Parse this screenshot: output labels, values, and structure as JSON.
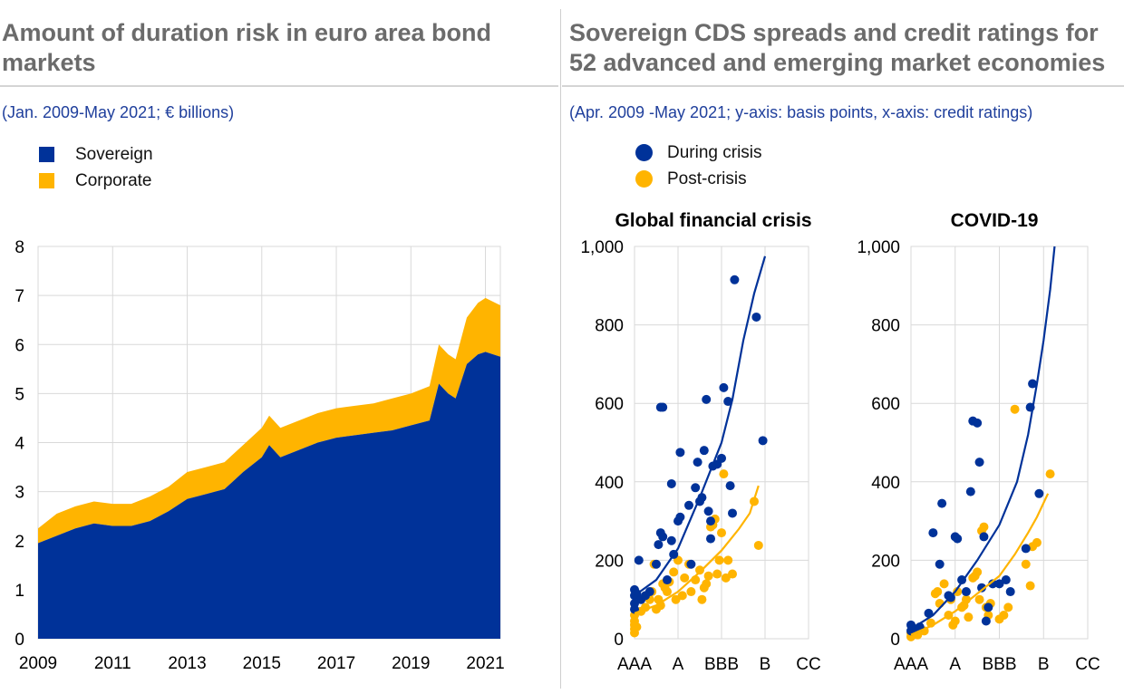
{
  "left_panel": {
    "title": "Amount of duration risk in euro area bond markets",
    "subtitle": "(Jan. 2009-May 2021; € billions)"
  },
  "right_panel": {
    "title": "Sovereign CDS spreads and credit ratings for 52 advanced and emerging market economies",
    "subtitle": "(Apr. 2009 -May 2021; y-axis: basis points, x-axis: credit ratings)"
  },
  "colors": {
    "sovereign": "#003299",
    "corporate": "#ffb400",
    "during": "#003299",
    "post": "#ffb400",
    "title_gray": "#6b6b6b",
    "subtitle_blue": "#1f3f9c"
  },
  "chart_data": [
    {
      "type": "area",
      "stacked": true,
      "x_ticks": [
        "2009",
        "2011",
        "2013",
        "2015",
        "2017",
        "2019",
        "2021"
      ],
      "ylim": [
        0,
        8
      ],
      "y_ticks": [
        "0",
        "1",
        "2",
        "3",
        "4",
        "5",
        "6",
        "7",
        "8"
      ],
      "grid": true,
      "legend": "top-left",
      "x": [
        2009.0,
        2009.5,
        2010.0,
        2010.5,
        2011.0,
        2011.5,
        2012.0,
        2012.5,
        2013.0,
        2013.5,
        2014.0,
        2014.5,
        2015.0,
        2015.2,
        2015.5,
        2016.0,
        2016.5,
        2017.0,
        2017.5,
        2018.0,
        2018.5,
        2019.0,
        2019.5,
        2019.75,
        2020.0,
        2020.2,
        2020.5,
        2020.8,
        2021.0,
        2021.4
      ],
      "series": [
        {
          "name": "Sovereign",
          "values": [
            1.95,
            2.1,
            2.25,
            2.35,
            2.3,
            2.3,
            2.4,
            2.6,
            2.85,
            2.95,
            3.05,
            3.4,
            3.7,
            3.95,
            3.7,
            3.85,
            4.0,
            4.1,
            4.15,
            4.2,
            4.25,
            4.35,
            4.45,
            5.2,
            5.0,
            4.9,
            5.6,
            5.8,
            5.85,
            5.75
          ]
        },
        {
          "name": "Corporate",
          "values": [
            0.3,
            0.45,
            0.45,
            0.45,
            0.45,
            0.45,
            0.5,
            0.5,
            0.55,
            0.55,
            0.55,
            0.55,
            0.6,
            0.6,
            0.6,
            0.6,
            0.6,
            0.6,
            0.6,
            0.6,
            0.65,
            0.65,
            0.7,
            0.8,
            0.8,
            0.8,
            0.95,
            1.05,
            1.1,
            1.05
          ]
        }
      ]
    },
    {
      "type": "scatter",
      "title": "Global financial crisis",
      "x_ticks": [
        "AAA",
        "A",
        "BBB",
        "B",
        "CC"
      ],
      "ylim": [
        0,
        1000
      ],
      "y_ticks": [
        "0",
        "200",
        "400",
        "600",
        "800",
        "1,000"
      ],
      "grid": true,
      "series": [
        {
          "name": "During crisis",
          "points": [
            [
              0,
              75
            ],
            [
              0,
              90
            ],
            [
              0,
              110
            ],
            [
              0,
              125
            ],
            [
              0.1,
              115
            ],
            [
              0.2,
              200
            ],
            [
              0.3,
              100
            ],
            [
              0.5,
              110
            ],
            [
              0.7,
              120
            ],
            [
              1.0,
              190
            ],
            [
              1.1,
              240
            ],
            [
              1.2,
              270
            ],
            [
              1.3,
              260
            ],
            [
              1.2,
              590
            ],
            [
              1.3,
              590
            ],
            [
              1.5,
              150
            ],
            [
              1.7,
              250
            ],
            [
              1.8,
              215
            ],
            [
              2.0,
              300
            ],
            [
              2.1,
              310
            ],
            [
              1.7,
              395
            ],
            [
              2.1,
              475
            ],
            [
              2.5,
              340
            ],
            [
              2.6,
              190
            ],
            [
              2.8,
              385
            ],
            [
              2.9,
              450
            ],
            [
              3.0,
              350
            ],
            [
              3.1,
              360
            ],
            [
              3.2,
              480
            ],
            [
              3.3,
              610
            ],
            [
              3.4,
              325
            ],
            [
              3.5,
              255
            ],
            [
              3.5,
              300
            ],
            [
              3.6,
              440
            ],
            [
              3.8,
              445
            ],
            [
              4.0,
              460
            ],
            [
              4.1,
              640
            ],
            [
              4.3,
              605
            ],
            [
              4.4,
              390
            ],
            [
              4.5,
              320
            ],
            [
              4.6,
              915
            ],
            [
              5.6,
              820
            ],
            [
              5.9,
              505
            ]
          ]
        },
        {
          "name": "Post-crisis",
          "points": [
            [
              0,
              15
            ],
            [
              0,
              25
            ],
            [
              0,
              35
            ],
            [
              0,
              45
            ],
            [
              0,
              60
            ],
            [
              0.1,
              30
            ],
            [
              0.3,
              70
            ],
            [
              0.5,
              80
            ],
            [
              0.7,
              100
            ],
            [
              0.8,
              120
            ],
            [
              0.9,
              190
            ],
            [
              1.0,
              75
            ],
            [
              1.1,
              100
            ],
            [
              1.2,
              85
            ],
            [
              1.3,
              140
            ],
            [
              1.4,
              130
            ],
            [
              1.5,
              120
            ],
            [
              1.6,
              145
            ],
            [
              1.8,
              170
            ],
            [
              1.9,
              100
            ],
            [
              2.0,
              200
            ],
            [
              2.2,
              110
            ],
            [
              2.3,
              155
            ],
            [
              2.5,
              190
            ],
            [
              2.6,
              120
            ],
            [
              2.8,
              150
            ],
            [
              3.0,
              175
            ],
            [
              3.1,
              100
            ],
            [
              3.2,
              130
            ],
            [
              3.3,
              140
            ],
            [
              3.4,
              160
            ],
            [
              3.5,
              285
            ],
            [
              3.6,
              290
            ],
            [
              3.7,
              305
            ],
            [
              3.8,
              165
            ],
            [
              3.9,
              200
            ],
            [
              4.0,
              270
            ],
            [
              4.1,
              420
            ],
            [
              4.2,
              155
            ],
            [
              4.3,
              200
            ],
            [
              4.5,
              165
            ],
            [
              5.5,
              350
            ],
            [
              5.7,
              238
            ]
          ]
        }
      ],
      "fit_lines": [
        {
          "name": "During crisis",
          "points": [
            [
              0,
              110
            ],
            [
              1,
              150
            ],
            [
              2,
              230
            ],
            [
              3,
              360
            ],
            [
              4,
              500
            ],
            [
              4.5,
              610
            ],
            [
              5,
              760
            ],
            [
              5.5,
              880
            ],
            [
              6,
              975
            ]
          ]
        },
        {
          "name": "Post-crisis",
          "points": [
            [
              0,
              65
            ],
            [
              1,
              85
            ],
            [
              2,
              120
            ],
            [
              3,
              170
            ],
            [
              4,
              225
            ],
            [
              4.8,
              280
            ],
            [
              5.3,
              320
            ],
            [
              5.7,
              390
            ]
          ]
        }
      ]
    },
    {
      "type": "scatter",
      "title": "COVID-19",
      "x_ticks": [
        "AAA",
        "A",
        "BBB",
        "B",
        "CC"
      ],
      "ylim": [
        0,
        1000
      ],
      "y_ticks": [
        "0",
        "200",
        "400",
        "600",
        "800",
        "1,000"
      ],
      "grid": true,
      "series": [
        {
          "name": "During crisis",
          "points": [
            [
              0,
              20
            ],
            [
              0,
              35
            ],
            [
              0.2,
              25
            ],
            [
              0.4,
              30
            ],
            [
              0.8,
              65
            ],
            [
              1.0,
              270
            ],
            [
              1.3,
              190
            ],
            [
              1.4,
              345
            ],
            [
              1.7,
              110
            ],
            [
              1.8,
              105
            ],
            [
              2.0,
              260
            ],
            [
              2.1,
              255
            ],
            [
              2.3,
              150
            ],
            [
              2.5,
              120
            ],
            [
              2.7,
              375
            ],
            [
              2.8,
              555
            ],
            [
              3.0,
              550
            ],
            [
              3.1,
              450
            ],
            [
              3.2,
              130
            ],
            [
              3.3,
              260
            ],
            [
              3.4,
              45
            ],
            [
              3.5,
              80
            ],
            [
              3.7,
              140
            ],
            [
              4.0,
              140
            ],
            [
              4.3,
              150
            ],
            [
              4.5,
              120
            ],
            [
              5.2,
              230
            ],
            [
              5.4,
              590
            ],
            [
              5.5,
              650
            ],
            [
              5.8,
              370
            ]
          ]
        },
        {
          "name": "Post-crisis",
          "points": [
            [
              0,
              5
            ],
            [
              0,
              15
            ],
            [
              0.3,
              10
            ],
            [
              0.6,
              20
            ],
            [
              0.9,
              40
            ],
            [
              1.1,
              115
            ],
            [
              1.2,
              120
            ],
            [
              1.3,
              90
            ],
            [
              1.5,
              140
            ],
            [
              1.7,
              60
            ],
            [
              1.8,
              100
            ],
            [
              1.9,
              35
            ],
            [
              2.0,
              45
            ],
            [
              2.1,
              120
            ],
            [
              2.3,
              80
            ],
            [
              2.4,
              85
            ],
            [
              2.5,
              100
            ],
            [
              2.6,
              55
            ],
            [
              2.8,
              155
            ],
            [
              2.9,
              160
            ],
            [
              3.0,
              170
            ],
            [
              3.1,
              100
            ],
            [
              3.2,
              275
            ],
            [
              3.3,
              285
            ],
            [
              3.4,
              80
            ],
            [
              3.5,
              60
            ],
            [
              3.6,
              90
            ],
            [
              4.0,
              50
            ],
            [
              4.2,
              60
            ],
            [
              4.4,
              80
            ],
            [
              4.7,
              585
            ],
            [
              5.2,
              190
            ],
            [
              5.4,
              135
            ],
            [
              5.5,
              235
            ],
            [
              5.7,
              245
            ],
            [
              6.3,
              420
            ]
          ]
        }
      ],
      "fit_lines": [
        {
          "name": "During crisis",
          "points": [
            [
              0,
              25
            ],
            [
              1,
              60
            ],
            [
              2,
              120
            ],
            [
              3,
              200
            ],
            [
              4,
              290
            ],
            [
              4.8,
              400
            ],
            [
              5.3,
              520
            ],
            [
              5.7,
              650
            ],
            [
              6.0,
              760
            ],
            [
              6.3,
              890
            ],
            [
              6.5,
              1000
            ]
          ]
        },
        {
          "name": "Post-crisis",
          "points": [
            [
              0,
              10
            ],
            [
              1,
              35
            ],
            [
              2,
              70
            ],
            [
              3,
              115
            ],
            [
              4,
              160
            ],
            [
              4.7,
              215
            ],
            [
              5.3,
              270
            ],
            [
              5.7,
              310
            ],
            [
              6.2,
              370
            ]
          ]
        }
      ]
    }
  ]
}
